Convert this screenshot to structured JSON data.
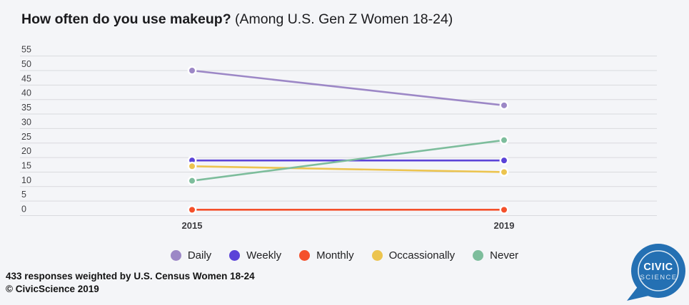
{
  "title": {
    "main": "How often do you use makeup?",
    "sub": " (Among U.S. Gen Z Women 18-24)"
  },
  "chart_data": {
    "type": "line",
    "x": [
      "2015",
      "2019"
    ],
    "series": [
      {
        "name": "Daily",
        "values": [
          50,
          38
        ],
        "color": "#9c87c6"
      },
      {
        "name": "Weekly",
        "values": [
          19,
          19
        ],
        "color": "#5b43d8"
      },
      {
        "name": "Monthly",
        "values": [
          2,
          2
        ],
        "color": "#f4502b"
      },
      {
        "name": "Occassionally",
        "values": [
          17,
          15
        ],
        "color": "#ecc44f"
      },
      {
        "name": "Never",
        "values": [
          12,
          26
        ],
        "color": "#7dbd9c"
      }
    ],
    "ylim": [
      0,
      55
    ],
    "yticks": [
      55,
      50,
      45,
      40,
      35,
      30,
      25,
      20,
      15,
      10,
      5,
      0
    ],
    "grid": true,
    "legend_position": "bottom"
  },
  "footer": {
    "line1": "433 responses weighted by U.S. Census Women 18-24",
    "line2": "© CivicScience 2019"
  },
  "logo": {
    "line1": "CIVIC",
    "line2": "SCIENCE",
    "color": "#2470b3"
  },
  "colors": {
    "background": "#f4f5f8",
    "gridline": "#d9dade",
    "title_text": "#1b1b1e",
    "tick_text": "#404043",
    "point_halo": "#ffffff"
  }
}
